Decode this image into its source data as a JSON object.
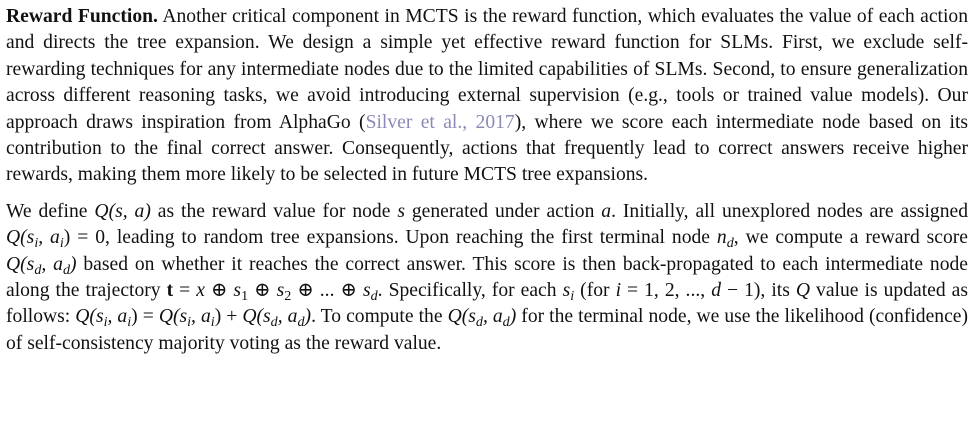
{
  "p1": {
    "run_title": "Reward Function.",
    "t1": " Another critical component in MCTS is the reward function, which evaluates the value of each action and directs the tree expansion. We design a simple yet effective reward function for SLMs. First, we exclude self-rewarding techniques for any intermediate nodes due to the limited capabilities of SLMs. Second, to ensure generalization across different reasoning tasks, we avoid introducing external supervision (e.g., tools or trained value models). Our approach draws inspiration from AlphaGo (",
    "cite_author": "Silver et al.",
    "cite_sep": ", ",
    "cite_year": "2017",
    "t2": "), where we score each intermediate node based on its contribution to the final correct answer. Consequently, actions that frequently lead to correct answers receive higher rewards, making them more likely to be selected in future MCTS tree expansions."
  },
  "p2": {
    "t1": "We define ",
    "q_sa": "Q(s, a)",
    "t2": " as the reward value for node ",
    "s": "s",
    "t3": " generated under action ",
    "a": "a",
    "t4": ". Initially, all unexplored nodes are assigned ",
    "q_init_lhs": "Q(s",
    "i": "i",
    "q_init_mid": ", a",
    "q_init_rhs": ") = 0",
    "t5": ", leading to random tree expansions. Upon reaching the first terminal node ",
    "n": "n",
    "d": "d",
    "t6": ", we compute a reward score ",
    "q_d_lhs": "Q(s",
    "q_d_mid": ", a",
    "q_d_rhs": ")",
    "t7": " based on whether it reaches the correct answer. This score is then back-propagated to each intermediate node along the trajectory ",
    "t_vec": "t",
    "traj_eq": " = ",
    "traj_x": "x",
    "oplus": " ⊕ ",
    "traj_s": "s",
    "traj_1": "1",
    "traj_2": "2",
    "traj_dots": "...",
    "t8": ". Specifically, for each ",
    "t9": " (for ",
    "range_eq": " = 1, 2, ..., ",
    "range_minus": " − 1)",
    "t10": ", its ",
    "q": "Q",
    "t11": " value is updated as follows: ",
    "upd_eq": ") = ",
    "upd_plus": ") + ",
    "t12": ". To compute the ",
    "t13": " for the terminal node, we use the likelihood (confidence) of self-consistency majority voting as the reward value."
  }
}
